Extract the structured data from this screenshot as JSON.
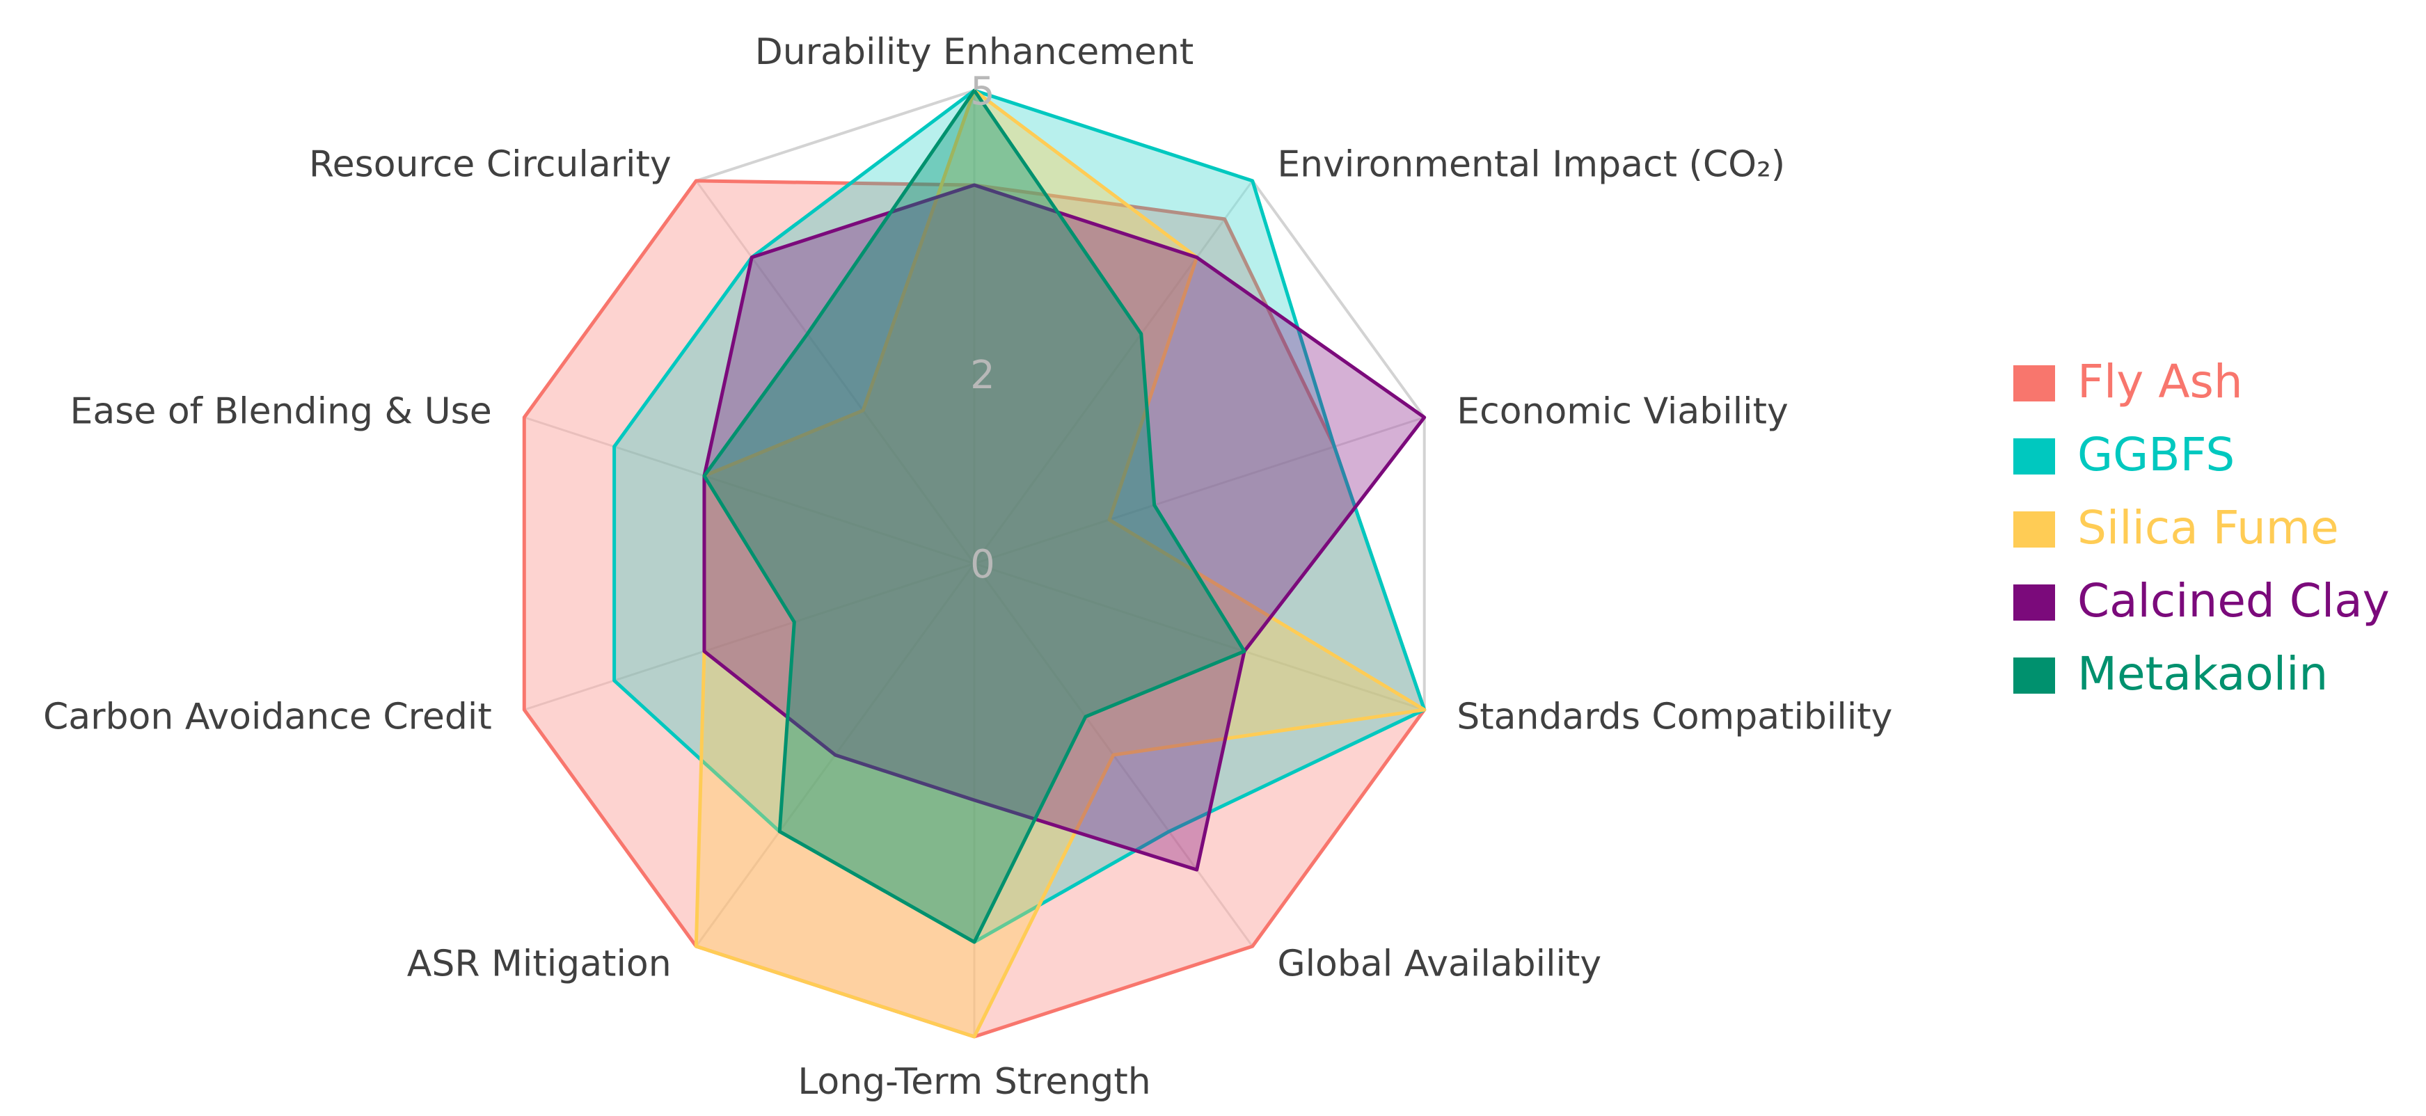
{
  "chart_data": {
    "type": "radar",
    "axes": [
      "Durability Enhancement",
      "Environmental Impact (CO₂)",
      "Economic Viability",
      "Standards Compatibility",
      "Global Availability",
      "Long-Term Strength",
      "ASR Mitigation",
      "Carbon Avoidance Credit",
      "Ease of Blending & Use",
      "Resource Circularity"
    ],
    "range": [
      0,
      5
    ],
    "ticks": [
      0,
      2,
      5
    ],
    "grid": true,
    "legend_position": "right",
    "series": [
      {
        "name": "Fly Ash",
        "color": "#f8766d",
        "fill_opacity": 0.32,
        "values": [
          4,
          4.5,
          4,
          5,
          5,
          5,
          5,
          5,
          5,
          5
        ]
      },
      {
        "name": "GGBFS",
        "color": "#00c8bf",
        "fill_opacity": 0.28,
        "values": [
          5,
          5,
          4,
          5,
          3.5,
          4,
          3.5,
          4,
          4,
          4
        ]
      },
      {
        "name": "Silica Fume",
        "color": "#ffcc55",
        "fill_opacity": 0.38,
        "values": [
          5,
          4,
          1.5,
          5,
          2.5,
          5,
          5,
          3,
          3,
          2
        ]
      },
      {
        "name": "Calcined Clay",
        "color": "#7b0a7b",
        "fill_opacity": 0.32,
        "values": [
          4,
          4,
          5,
          3,
          4,
          2.5,
          2.5,
          3,
          3,
          4
        ]
      },
      {
        "name": "Metakaolin",
        "color": "#00916e",
        "fill_opacity": 0.38,
        "values": [
          5,
          3,
          2,
          3,
          2,
          4,
          3.5,
          2,
          3,
          3
        ]
      }
    ]
  }
}
